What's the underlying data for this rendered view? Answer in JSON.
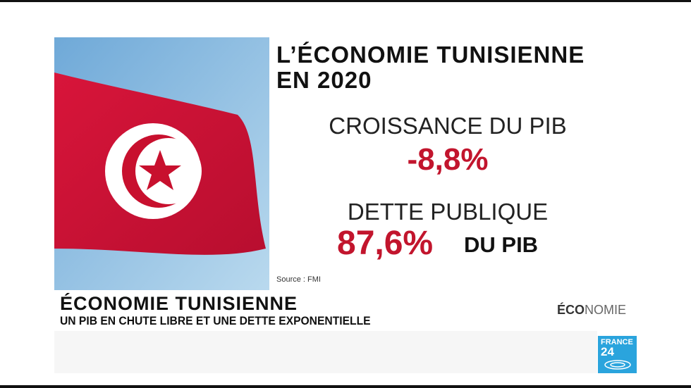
{
  "headline": {
    "lines": [
      "L’ÉCONOMIE TUNISIENNE",
      "EN 2020"
    ]
  },
  "stats": [
    {
      "label": "CROISSANCE DU PIB",
      "value": "-8,8%"
    },
    {
      "label": "DETTE PUBLIQUE",
      "value": "87,6%",
      "suffix": "DU PIB"
    }
  ],
  "source": "Source : FMI",
  "lower_third": {
    "title": "ÉCONOMIE TUNISIENNE",
    "subtitle": "UN PIB EN CHUTE LIBRE ET UNE DETTE EXPONENTIELLE"
  },
  "section": {
    "bold": "ÉCO",
    "light": "NOMIE"
  },
  "logo": {
    "top": "FRANCE",
    "bottom": "24"
  }
}
